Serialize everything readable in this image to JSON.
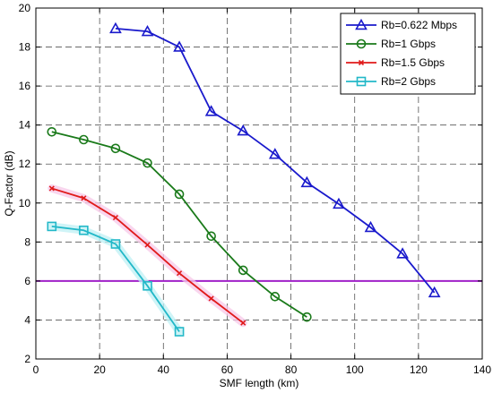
{
  "chart_data": {
    "type": "line",
    "title": "",
    "xlabel": "SMF length (km)",
    "ylabel": "Q-Factor (dB)",
    "xlim": [
      0,
      140
    ],
    "ylim": [
      2,
      20
    ],
    "xticks": [
      0,
      20,
      40,
      60,
      80,
      100,
      120,
      140
    ],
    "yticks": [
      2,
      4,
      6,
      8,
      10,
      12,
      14,
      16,
      18,
      20
    ],
    "grid": true,
    "legend_position": "top-right",
    "threshold_line": {
      "y": 6,
      "color": "#a020c8"
    },
    "series": [
      {
        "name": "Rb=0.622 Mbps",
        "color": "#1a1acc",
        "marker": "triangle",
        "x": [
          25,
          35,
          45,
          55,
          65,
          75,
          85,
          95,
          105,
          115,
          125
        ],
        "y": [
          18.95,
          18.8,
          18.0,
          14.7,
          13.7,
          12.5,
          11.05,
          9.95,
          8.75,
          7.4,
          5.4
        ]
      },
      {
        "name": "Rb=1 Gbps",
        "color": "#1a7a1a",
        "marker": "circle",
        "x": [
          5,
          15,
          25,
          35,
          45,
          55,
          65,
          75,
          85
        ],
        "y": [
          13.65,
          13.25,
          12.8,
          12.05,
          10.45,
          8.3,
          6.55,
          5.2,
          4.15
        ]
      },
      {
        "name": "Rb=1.5 Gbps",
        "color": "#e01a1a",
        "marker": "x",
        "x": [
          5,
          15,
          25,
          35,
          45,
          55,
          65
        ],
        "y": [
          10.75,
          10.25,
          9.25,
          7.85,
          6.4,
          5.1,
          3.85
        ]
      },
      {
        "name": "Rb=2 Gbps",
        "color": "#22b8c8",
        "marker": "square",
        "x": [
          5,
          15,
          25,
          35,
          45
        ],
        "y": [
          8.8,
          8.6,
          7.9,
          5.75,
          3.4
        ]
      }
    ]
  }
}
